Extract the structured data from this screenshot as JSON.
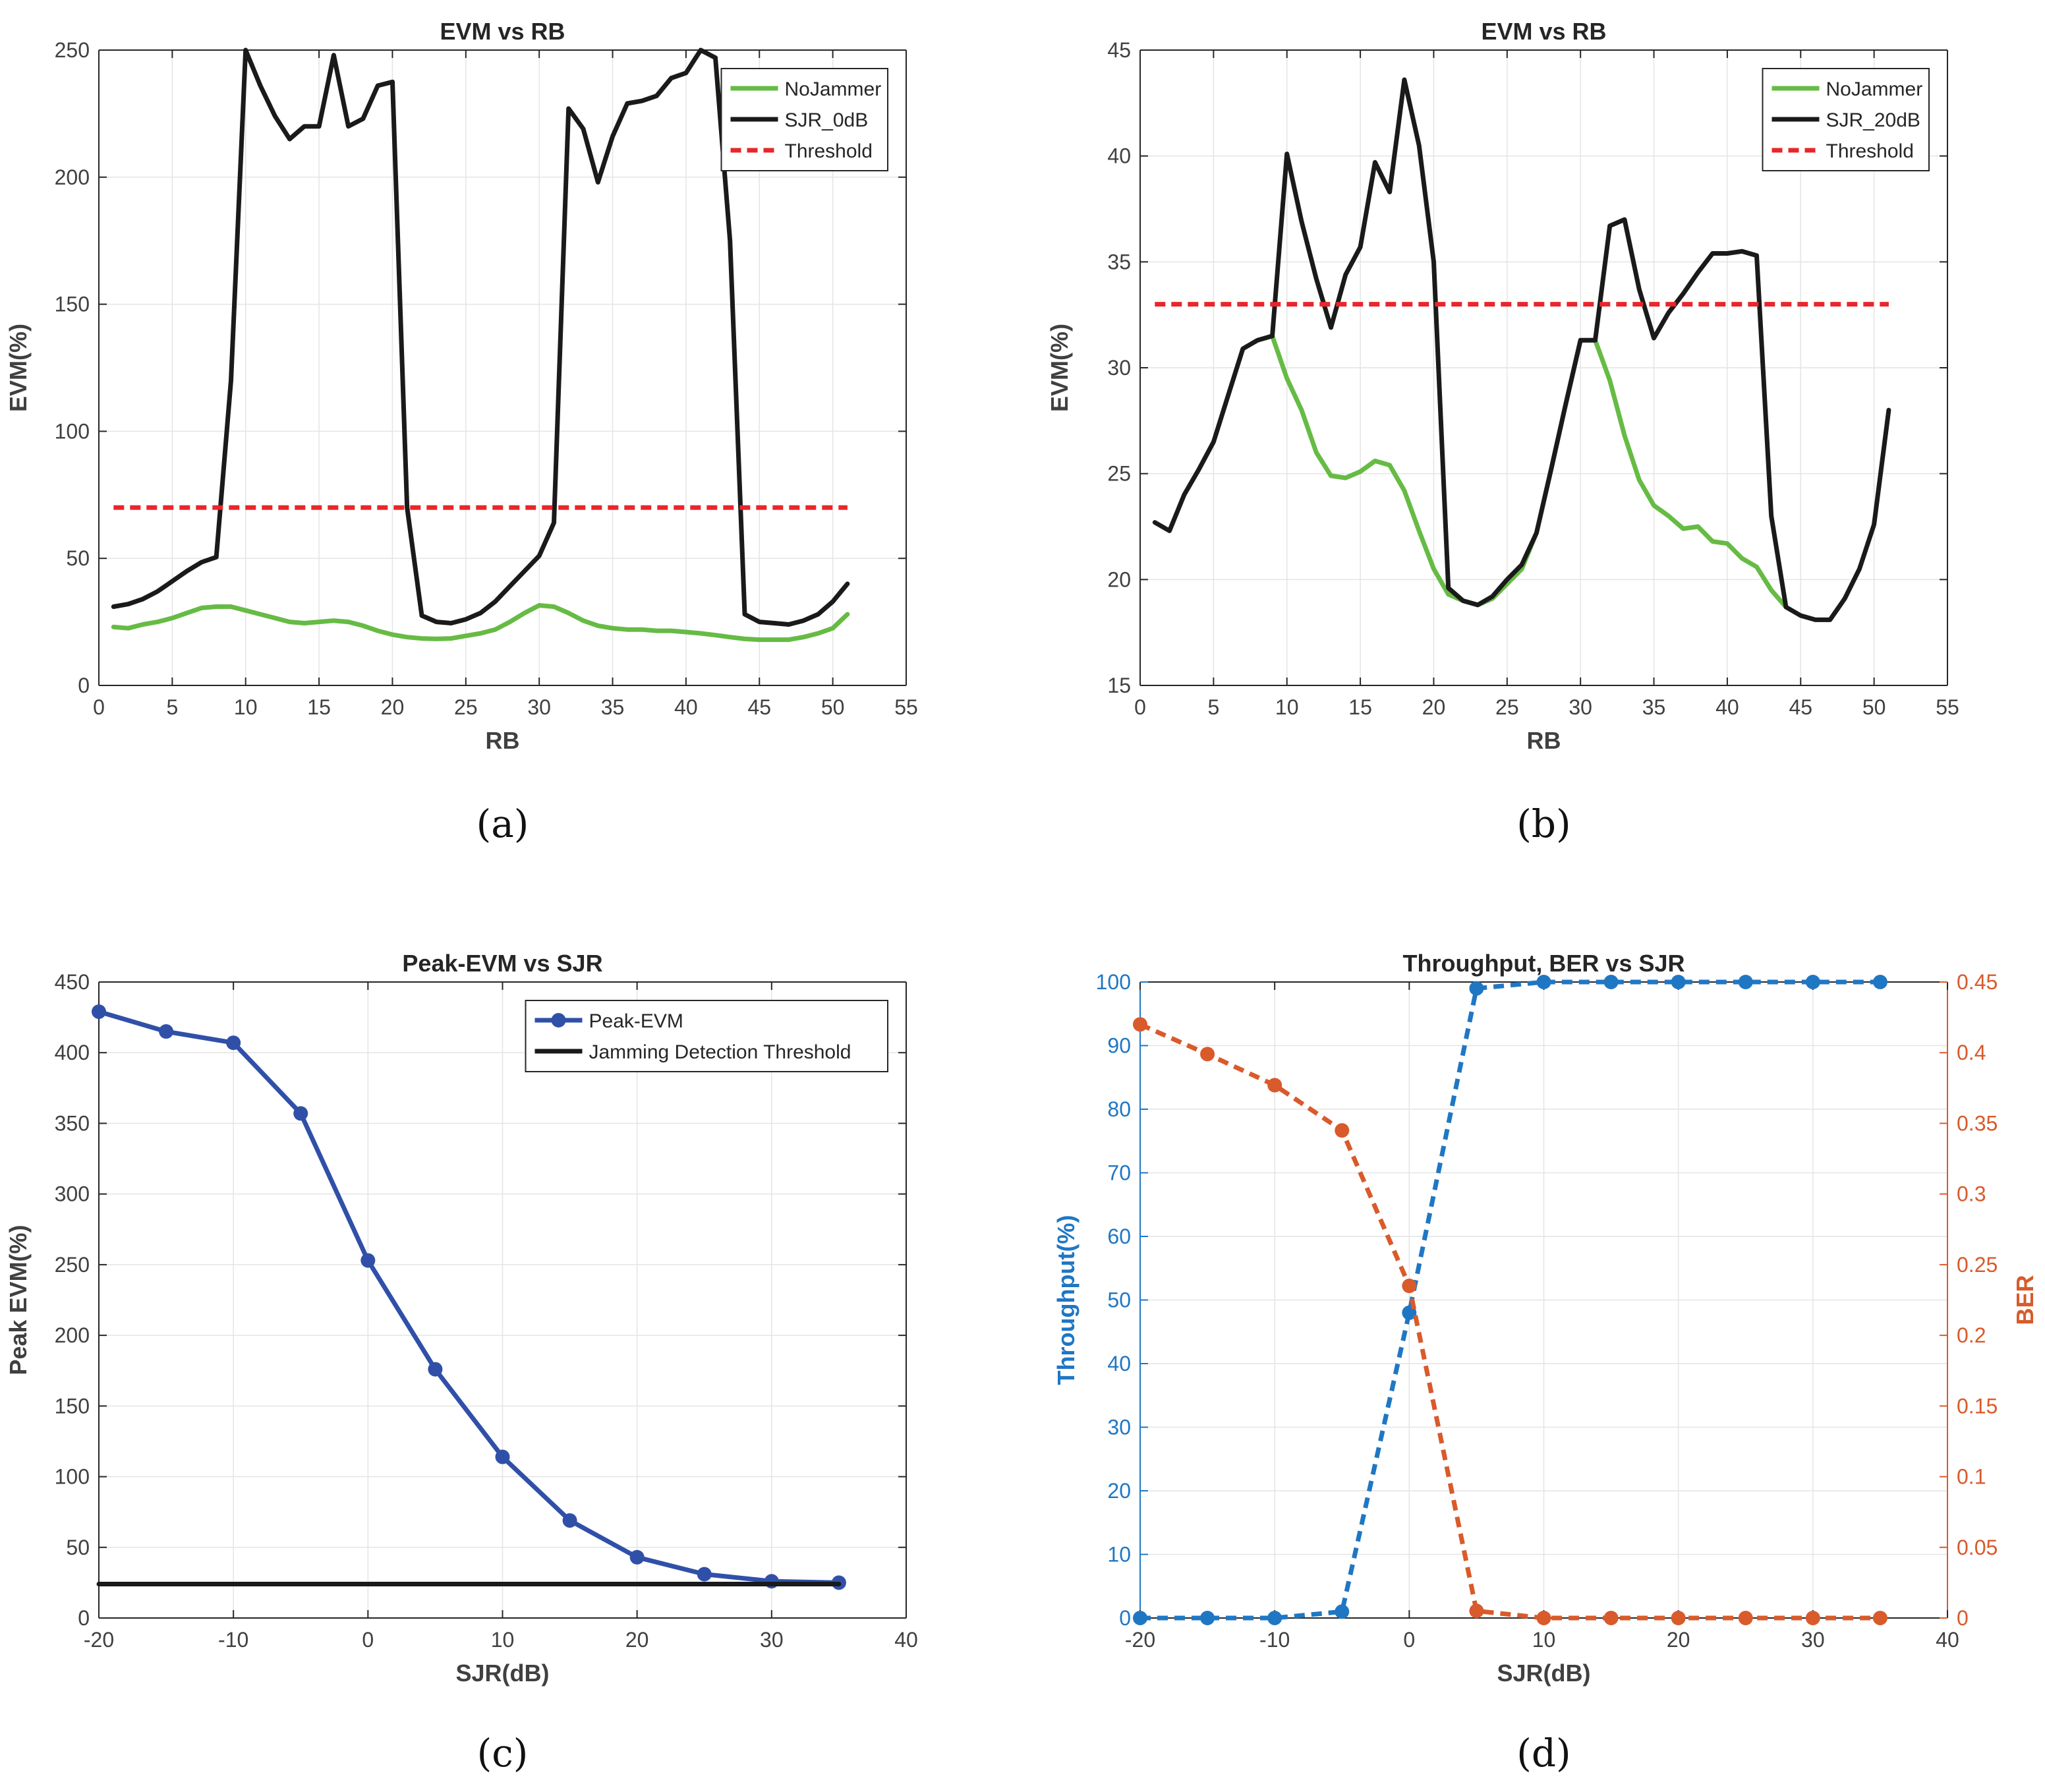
{
  "chart_data": [
    {
      "id": "a",
      "type": "line",
      "title": "EVM vs RB",
      "xlabel": "RB",
      "ylabel": "EVM(%)",
      "caption": "(a)",
      "xlim": [
        0,
        55
      ],
      "ylim": [
        0,
        250
      ],
      "xticks": [
        0,
        5,
        10,
        15,
        20,
        25,
        30,
        35,
        40,
        45,
        50,
        55
      ],
      "yticks": [
        0,
        50,
        100,
        150,
        200,
        250
      ],
      "grid": true,
      "legend": "top-right",
      "series": [
        {
          "name": "NoJammer",
          "color": "#66bb44",
          "dash": "",
          "x": [
            1,
            2,
            3,
            4,
            5,
            6,
            7,
            8,
            9,
            10,
            11,
            12,
            13,
            14,
            15,
            16,
            17,
            18,
            19,
            20,
            21,
            22,
            23,
            24,
            25,
            26,
            27,
            28,
            29,
            30,
            31,
            32,
            33,
            34,
            35,
            36,
            37,
            38,
            39,
            40,
            41,
            42,
            43,
            44,
            45,
            46,
            47,
            48,
            49,
            50,
            51
          ],
          "y": [
            23,
            22.5,
            24,
            25,
            26.5,
            28.5,
            30.5,
            31,
            31,
            29.5,
            28,
            26.5,
            25,
            24.5,
            25,
            25.5,
            25,
            23.5,
            21.5,
            20,
            19,
            18.5,
            18.3,
            18.5,
            19.5,
            20.5,
            22,
            25,
            28.5,
            31.5,
            31,
            28.5,
            25.5,
            23.5,
            22.5,
            22,
            22,
            21.5,
            21.5,
            21,
            20.5,
            19.8,
            19,
            18.3,
            18,
            18,
            18,
            19,
            20.5,
            22.5,
            28
          ]
        },
        {
          "name": "SJR_0dB",
          "color": "#1a1a1a",
          "dash": "",
          "x": [
            1,
            2,
            3,
            4,
            5,
            6,
            7,
            8,
            9,
            10,
            11,
            12,
            13,
            14,
            15,
            16,
            17,
            18,
            19,
            20,
            21,
            22,
            23,
            24,
            25,
            26,
            27,
            28,
            29,
            30,
            31,
            32,
            33,
            34,
            35,
            36,
            37,
            38,
            39,
            40,
            41,
            42,
            43,
            44,
            45,
            46,
            47,
            48,
            49,
            50,
            51
          ],
          "y": [
            31,
            32,
            34,
            37,
            41,
            45,
            48.5,
            50.5,
            120,
            250,
            236,
            224,
            215,
            220,
            220,
            248,
            220,
            223,
            236,
            237.5,
            70,
            27.5,
            25,
            24.5,
            26,
            28.5,
            33,
            39,
            45,
            51,
            64,
            227,
            219,
            198,
            216,
            229,
            230,
            232,
            239,
            241,
            250,
            247,
            175,
            28,
            25,
            24.5,
            24,
            25.5,
            28,
            33,
            40
          ]
        },
        {
          "name": "Threshold",
          "color": "#e8262b",
          "dash": "16,9",
          "x": [
            1,
            51
          ],
          "y": [
            70,
            70
          ]
        }
      ]
    },
    {
      "id": "b",
      "type": "line",
      "title": "EVM vs RB",
      "xlabel": "RB",
      "ylabel": "EVM(%)",
      "caption": "(b)",
      "xlim": [
        0,
        55
      ],
      "ylim": [
        15,
        45
      ],
      "xticks": [
        0,
        5,
        10,
        15,
        20,
        25,
        30,
        35,
        40,
        45,
        50,
        55
      ],
      "yticks": [
        15,
        20,
        25,
        30,
        35,
        40,
        45
      ],
      "grid": true,
      "legend": "top-right",
      "series": [
        {
          "name": "NoJammer",
          "color": "#66bb44",
          "dash": "",
          "x": [
            9,
            10,
            11,
            12,
            13,
            14,
            15,
            16,
            17,
            18,
            19,
            20,
            21,
            22,
            23,
            24,
            25,
            26,
            27,
            28,
            29,
            30,
            31,
            32,
            33,
            34,
            35,
            36,
            37,
            38,
            39,
            40,
            41,
            42,
            43,
            44
          ],
          "y": [
            31.5,
            29.5,
            28,
            26,
            24.9,
            24.8,
            25.1,
            25.6,
            25.4,
            24.2,
            22.3,
            20.5,
            19.3,
            19.0,
            18.8,
            19.1,
            19.8,
            20.5,
            22.2,
            25.2,
            28.3,
            31.3,
            31.3,
            29.4,
            26.8,
            24.7,
            23.5,
            23.0,
            22.4,
            22.5,
            21.8,
            21.7,
            21.0,
            20.6,
            19.5,
            18.7
          ]
        },
        {
          "name": "SJR_20dB",
          "color": "#1a1a1a",
          "dash": "",
          "x": [
            1,
            2,
            3,
            4,
            5,
            6,
            7,
            8,
            9,
            10,
            11,
            12,
            13,
            14,
            15,
            16,
            17,
            18,
            19,
            20,
            21,
            22,
            23,
            24,
            25,
            26,
            27,
            28,
            29,
            30,
            31,
            32,
            33,
            34,
            35,
            36,
            37,
            38,
            39,
            40,
            41,
            42,
            43,
            44,
            45,
            46,
            47,
            48,
            49,
            50,
            51
          ],
          "y": [
            22.7,
            22.3,
            24,
            25.2,
            26.5,
            28.7,
            30.9,
            31.3,
            31.5,
            40.1,
            36.9,
            34.2,
            31.9,
            34.4,
            35.7,
            39.7,
            38.3,
            43.6,
            40.5,
            35,
            19.6,
            19,
            18.8,
            19.2,
            20,
            20.7,
            22.2,
            25.2,
            28.3,
            31.3,
            31.3,
            36.7,
            37.0,
            33.7,
            31.4,
            32.6,
            33.5,
            34.5,
            35.4,
            35.4,
            35.5,
            35.3,
            23,
            18.7,
            18.3,
            18.1,
            18.1,
            19.1,
            20.5,
            22.6,
            28.0
          ]
        },
        {
          "name": "Threshold",
          "color": "#e8262b",
          "dash": "16,9",
          "x": [
            1,
            51
          ],
          "y": [
            33,
            33
          ]
        }
      ]
    },
    {
      "id": "c",
      "type": "line",
      "title": "Peak-EVM vs SJR",
      "xlabel": "SJR(dB)",
      "ylabel": "Peak EVM(%)",
      "caption": "(c)",
      "xlim": [
        -20,
        40
      ],
      "ylim": [
        0,
        450
      ],
      "xticks": [
        -20,
        -10,
        0,
        10,
        20,
        30,
        40
      ],
      "yticks": [
        0,
        50,
        100,
        150,
        200,
        250,
        300,
        350,
        400,
        450
      ],
      "grid": true,
      "legend": "top-right",
      "series": [
        {
          "name": "Peak-EVM",
          "color": "#3050a8",
          "dash": "",
          "markers": true,
          "x": [
            -20,
            -15,
            -10,
            -5,
            0,
            5,
            10,
            15,
            20,
            25,
            30,
            35
          ],
          "y": [
            429,
            415,
            407,
            357,
            253,
            176,
            114,
            69,
            43,
            31,
            26,
            25
          ]
        },
        {
          "name": "Jamming Detection Threshold",
          "color": "#1a1a1a",
          "dash": "",
          "x": [
            -20,
            35
          ],
          "y": [
            24,
            24
          ]
        }
      ]
    },
    {
      "id": "d",
      "type": "line",
      "title": "Throughput, BER vs SJR",
      "xlabel": "SJR(dB)",
      "ylabel": "Throughput(%)",
      "y2label": "BER",
      "caption": "(d)",
      "xlim": [
        -20,
        40
      ],
      "ylim": [
        0,
        100
      ],
      "y2lim": [
        0,
        0.45
      ],
      "xticks": [
        -20,
        -10,
        0,
        10,
        20,
        30,
        40
      ],
      "yticks": [
        0,
        10,
        20,
        30,
        40,
        50,
        60,
        70,
        80,
        90,
        100
      ],
      "y2ticks": [
        0,
        0.05,
        0.1,
        0.15,
        0.2,
        0.25,
        0.3,
        0.35,
        0.4,
        0.45
      ],
      "grid": true,
      "series": [
        {
          "name": "Throughput",
          "axis": "left",
          "color": "#1f77c4",
          "dash": "16,10",
          "markers": true,
          "x": [
            -20,
            -15,
            -10,
            -5,
            0,
            5,
            10,
            15,
            20,
            25,
            30,
            35
          ],
          "y": [
            0,
            0,
            0,
            1,
            48,
            99,
            100,
            100,
            100,
            100,
            100,
            100
          ]
        },
        {
          "name": "BER",
          "axis": "right",
          "color": "#d95a2b",
          "dash": "16,10",
          "markers": true,
          "x": [
            -20,
            -15,
            -10,
            -5,
            0,
            5,
            10,
            15,
            20,
            25,
            30,
            35
          ],
          "y": [
            0.42,
            0.399,
            0.377,
            0.345,
            0.235,
            0.005,
            0,
            0,
            0,
            0,
            0,
            0
          ]
        }
      ]
    }
  ]
}
